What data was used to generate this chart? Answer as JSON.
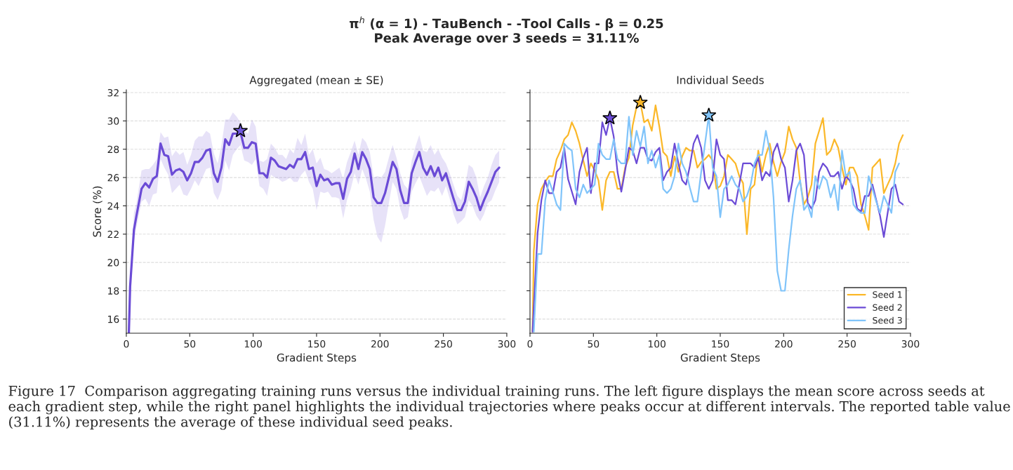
{
  "chart_data": [
    {
      "type": "line",
      "title": "Aggregated (mean ± SE)",
      "xlabel": "Gradient Steps",
      "ylabel": "Score (%)",
      "xlim": [
        0,
        300
      ],
      "ylim": [
        15,
        32.2
      ],
      "xticks": [
        0,
        50,
        100,
        150,
        200,
        250,
        300
      ],
      "yticks": [
        16,
        18,
        20,
        22,
        24,
        26,
        28,
        30,
        32
      ],
      "grid": "y",
      "annotations": [
        "π$^{h}$ (α = 1) - TauBench - -Tool Calls - β = 0.25",
        "Peak Average over 3 seeds = 31.11%",
        "Figure 17  Comparison aggregating training runs versus the individual training runs. The left figure displays the mean score across seeds at each gradient step, while the right panel highlights the individual trajectories where peaks occur at different intervals. The reported table value (31.11%) represents the average of these individual seed peaks."
      ],
      "series": [
        {
          "color": "#6b4bd6",
          "x": [
            2,
            3,
            6,
            8,
            12,
            15,
            18,
            21,
            24,
            27,
            30,
            33,
            36,
            39,
            42,
            45,
            48,
            51,
            54,
            57,
            60,
            63,
            66,
            69,
            72,
            75,
            78,
            81,
            84,
            87,
            90,
            93,
            96,
            99,
            102,
            105,
            108,
            111,
            114,
            117,
            120,
            123,
            126,
            129,
            132,
            135,
            138,
            141,
            144,
            147,
            150,
            153,
            156,
            159,
            162,
            165,
            168,
            171,
            174,
            177,
            180,
            183,
            186,
            189,
            192,
            195,
            198,
            201,
            204,
            207,
            210,
            213,
            216,
            219,
            222,
            225,
            228,
            231,
            234,
            237,
            240,
            243,
            246,
            249,
            252,
            255,
            258,
            261,
            264,
            267,
            270,
            273,
            276,
            279,
            282,
            285,
            288,
            291,
            294
          ],
          "values": [
            15.0,
            18.3,
            22.3,
            23.3,
            25.2,
            25.6,
            25.3,
            25.9,
            26.1,
            28.4,
            27.6,
            27.5,
            26.2,
            26.5,
            26.6,
            26.4,
            25.8,
            26.3,
            27.1,
            27.1,
            27.4,
            27.9,
            28.0,
            26.3,
            25.7,
            26.7,
            28.7,
            28.3,
            29.1,
            29.1,
            29.2,
            28.1,
            28.1,
            28.5,
            28.4,
            26.3,
            26.3,
            26.0,
            27.4,
            27.2,
            26.8,
            26.7,
            26.6,
            26.9,
            26.7,
            27.3,
            27.3,
            27.8,
            26.6,
            26.7,
            25.4,
            26.2,
            25.8,
            25.9,
            25.5,
            25.6,
            25.6,
            24.5,
            25.9,
            26.4,
            27.7,
            26.6,
            27.8,
            27.3,
            26.6,
            24.6,
            24.2,
            24.2,
            24.9,
            26.0,
            27.1,
            26.6,
            25.1,
            24.2,
            24.2,
            26.3,
            27.1,
            27.8,
            26.7,
            26.2,
            26.8,
            26.1,
            26.7,
            25.8,
            26.3,
            25.4,
            24.5,
            23.7,
            23.7,
            24.3,
            25.7,
            25.2,
            24.6,
            23.7,
            24.4,
            25.0,
            25.7,
            26.4,
            26.7
          ],
          "lower": [
            15.0,
            18.0,
            21.5,
            22.5,
            24.3,
            24.5,
            24.0,
            24.8,
            24.9,
            27.3,
            26.7,
            26.2,
            24.9,
            25.2,
            25.5,
            24.8,
            24.7,
            25.2,
            25.8,
            25.4,
            26.0,
            26.6,
            26.7,
            24.9,
            24.4,
            25.1,
            27.2,
            26.5,
            27.6,
            28.0,
            28.3,
            27.2,
            27.1,
            26.9,
            27.3,
            25.4,
            25.2,
            24.7,
            26.2,
            26.0,
            25.9,
            25.7,
            25.8,
            26.0,
            25.7,
            25.7,
            26.2,
            26.5,
            25.7,
            25.2,
            23.7,
            25.0,
            24.9,
            25.0,
            24.6,
            24.6,
            24.5,
            23.1,
            24.4,
            25.2,
            26.3,
            25.5,
            26.6,
            25.9,
            25.0,
            23.0,
            21.8,
            21.4,
            22.6,
            24.2,
            25.7,
            25.2,
            23.8,
            23.0,
            23.2,
            25.0,
            25.6,
            26.1,
            25.4,
            24.7,
            25.1,
            25.0,
            25.3,
            24.7,
            25.4,
            24.5,
            23.4,
            22.7,
            22.9,
            23.2,
            24.4,
            24.0,
            23.3,
            22.9,
            23.4,
            24.2,
            24.4,
            25.1,
            25.7
          ],
          "upper": [
            15.0,
            18.6,
            23.5,
            24.2,
            26.5,
            26.6,
            26.6,
            26.9,
            27.3,
            29.2,
            28.8,
            28.9,
            27.5,
            27.9,
            27.6,
            27.8,
            26.9,
            27.6,
            28.6,
            28.9,
            28.9,
            29.3,
            29.1,
            27.7,
            27.0,
            28.3,
            30.1,
            30.1,
            30.6,
            30.3,
            29.9,
            29.3,
            29.1,
            30.1,
            29.6,
            27.2,
            27.1,
            27.3,
            28.4,
            28.1,
            27.6,
            27.6,
            27.3,
            28.0,
            27.7,
            28.8,
            28.3,
            29.1,
            27.6,
            28.0,
            27.0,
            27.4,
            26.6,
            26.5,
            26.3,
            26.5,
            26.7,
            25.9,
            27.1,
            27.8,
            28.6,
            27.6,
            28.8,
            28.5,
            27.8,
            26.0,
            26.1,
            26.0,
            26.4,
            27.4,
            28.3,
            27.4,
            26.3,
            25.5,
            25.2,
            27.2,
            28.2,
            29.0,
            27.9,
            27.8,
            28.3,
            27.6,
            28.0,
            27.4,
            27.0,
            26.3,
            25.5,
            24.7,
            24.4,
            25.4,
            26.9,
            26.7,
            26.0,
            24.6,
            25.4,
            26.0,
            26.9,
            27.6,
            27.9
          ]
        },
        {
          "type": "scatter",
          "marker": "star",
          "color": "#7058dc",
          "x": [
            90
          ],
          "values": [
            29.3
          ]
        }
      ]
    },
    {
      "type": "line",
      "title": "Individual Seeds",
      "xlabel": "Gradient Steps",
      "xlim": [
        0,
        300
      ],
      "ylim": [
        15,
        32.2
      ],
      "xticks": [
        0,
        50,
        100,
        150,
        200,
        250,
        300
      ],
      "yticks": [
        16,
        18,
        20,
        22,
        24,
        26,
        28,
        30,
        32
      ],
      "grid": "y",
      "tick_labels": "x",
      "legend": "bottom right",
      "series": [
        {
          "name": "Seed 1",
          "color": "#fbb829",
          "x": [
            2,
            3,
            6,
            9,
            12,
            15,
            18,
            21,
            24,
            27,
            30,
            33,
            36,
            39,
            42,
            45,
            48,
            51,
            54,
            57,
            60,
            63,
            66,
            69,
            72,
            75,
            78,
            81,
            84,
            87,
            90,
            93,
            96,
            99,
            102,
            105,
            108,
            111,
            114,
            117,
            120,
            123,
            126,
            129,
            132,
            135,
            138,
            141,
            144,
            147,
            150,
            153,
            156,
            159,
            162,
            165,
            168,
            171,
            174,
            177,
            180,
            183,
            186,
            189,
            192,
            195,
            198,
            201,
            204,
            207,
            210,
            213,
            216,
            219,
            222,
            225,
            228,
            231,
            234,
            237,
            240,
            243,
            246,
            249,
            252,
            255,
            258,
            261,
            264,
            267,
            270,
            273,
            276,
            279,
            282,
            285,
            288,
            291,
            294
          ],
          "values": [
            15.1,
            20.8,
            24.1,
            25.2,
            25.7,
            26.1,
            26.1,
            27.3,
            27.9,
            28.7,
            29.0,
            29.9,
            29.3,
            28.4,
            27.2,
            26.1,
            27.0,
            26.5,
            25.8,
            23.7,
            25.8,
            26.4,
            26.4,
            25.2,
            25.2,
            26.7,
            27.4,
            29.7,
            31.0,
            31.3,
            29.9,
            30.1,
            29.3,
            31.1,
            29.6,
            27.8,
            27.5,
            26.1,
            27.5,
            26.4,
            27.5,
            28.1,
            27.9,
            27.9,
            26.7,
            27.1,
            27.3,
            27.6,
            27.2,
            25.2,
            25.4,
            26.1,
            27.6,
            27.3,
            27.0,
            26.1,
            25.6,
            22.0,
            25.2,
            25.5,
            27.9,
            26.4,
            27.6,
            28.4,
            27.1,
            26.1,
            27.1,
            27.8,
            29.6,
            28.7,
            28.1,
            25.7,
            24.1,
            24.6,
            25.5,
            28.4,
            29.3,
            30.2,
            27.6,
            27.9,
            28.7,
            28.1,
            26.7,
            25.5,
            26.7,
            26.7,
            26.1,
            24.1,
            23.3,
            22.3,
            26.7,
            27.0,
            27.3,
            24.9,
            25.5,
            26.1,
            27.0,
            28.4,
            29.0
          ]
        },
        {
          "name": "Seed 2",
          "color": "#6b4bd6",
          "x": [
            2,
            6,
            9,
            12,
            15,
            18,
            21,
            24,
            27,
            30,
            33,
            36,
            39,
            42,
            45,
            48,
            51,
            54,
            57,
            60,
            63,
            66,
            69,
            72,
            75,
            78,
            81,
            84,
            87,
            90,
            93,
            96,
            99,
            102,
            105,
            108,
            111,
            114,
            117,
            120,
            123,
            126,
            129,
            132,
            135,
            138,
            141,
            144,
            147,
            150,
            153,
            156,
            159,
            162,
            165,
            168,
            171,
            174,
            177,
            180,
            183,
            186,
            189,
            192,
            195,
            198,
            201,
            204,
            207,
            210,
            213,
            216,
            219,
            222,
            225,
            228,
            231,
            234,
            237,
            240,
            243,
            246,
            249,
            252,
            255,
            258,
            261,
            264,
            267,
            270,
            273,
            276,
            279,
            282,
            285,
            288,
            291,
            294
          ],
          "values": [
            15.1,
            22.1,
            24.4,
            25.8,
            24.9,
            24.9,
            26.4,
            26.7,
            28.1,
            25.9,
            25.0,
            24.1,
            26.4,
            27.4,
            28.1,
            24.9,
            27.0,
            27.0,
            29.9,
            29.0,
            30.2,
            28.9,
            26.4,
            25.0,
            26.5,
            28.1,
            27.9,
            27.0,
            28.1,
            28.1,
            27.3,
            27.2,
            27.8,
            28.1,
            25.8,
            26.4,
            26.7,
            28.4,
            27.0,
            25.8,
            25.5,
            26.8,
            28.4,
            29.0,
            28.1,
            25.8,
            25.2,
            25.8,
            28.7,
            27.6,
            27.3,
            24.4,
            24.4,
            24.1,
            25.5,
            27.0,
            27.0,
            27.0,
            26.7,
            27.4,
            25.8,
            26.4,
            26.1,
            27.8,
            28.4,
            27.3,
            26.7,
            24.3,
            25.8,
            27.9,
            28.4,
            27.6,
            24.2,
            23.8,
            24.4,
            26.4,
            27.0,
            26.7,
            26.1,
            26.1,
            26.4,
            25.2,
            26.1,
            25.8,
            25.2,
            23.8,
            23.6,
            24.7,
            24.7,
            25.5,
            24.4,
            23.3,
            21.8,
            23.5,
            25.2,
            25.5,
            24.3,
            24.1
          ]
        },
        {
          "name": "Seed 3",
          "color": "#80c4fa",
          "x": [
            3,
            6,
            9,
            12,
            15,
            18,
            21,
            24,
            27,
            30,
            33,
            36,
            39,
            42,
            45,
            48,
            51,
            54,
            57,
            60,
            63,
            66,
            69,
            72,
            75,
            78,
            81,
            84,
            87,
            90,
            93,
            96,
            99,
            102,
            105,
            108,
            111,
            114,
            117,
            120,
            123,
            126,
            129,
            132,
            135,
            138,
            141,
            144,
            147,
            150,
            153,
            156,
            159,
            162,
            165,
            168,
            171,
            174,
            177,
            180,
            183,
            186,
            189,
            192,
            195,
            198,
            201,
            204,
            207,
            210,
            213,
            216,
            219,
            222,
            225,
            228,
            231,
            234,
            237,
            240,
            243,
            246,
            249,
            252,
            255,
            258,
            261,
            264,
            267,
            270,
            273,
            276,
            279,
            282,
            285,
            288,
            291
          ],
          "values": [
            15.1,
            20.6,
            20.6,
            24.4,
            25.8,
            25.0,
            24.1,
            23.7,
            28.4,
            28.1,
            27.9,
            25.2,
            24.6,
            25.5,
            24.9,
            25.2,
            25.5,
            28.4,
            27.6,
            27.3,
            27.3,
            28.7,
            27.3,
            27.0,
            27.0,
            30.3,
            27.6,
            29.3,
            28.2,
            29.6,
            27.0,
            27.9,
            26.7,
            27.6,
            25.2,
            24.9,
            25.2,
            26.1,
            28.4,
            27.0,
            26.4,
            25.3,
            24.3,
            24.3,
            26.4,
            28.4,
            30.4,
            26.7,
            26.1,
            23.2,
            25.2,
            25.5,
            26.1,
            25.5,
            25.2,
            24.3,
            24.7,
            25.5,
            27.0,
            27.6,
            27.6,
            29.3,
            27.9,
            24.6,
            19.4,
            18.0,
            18.0,
            20.9,
            23.3,
            25.2,
            25.8,
            23.7,
            24.1,
            23.2,
            26.1,
            25.2,
            26.1,
            25.8,
            24.6,
            25.5,
            23.7,
            27.9,
            26.1,
            26.4,
            24.1,
            23.7,
            23.5,
            23.5,
            26.1,
            25.2,
            24.3,
            23.5,
            24.7,
            24.1,
            23.5,
            26.4,
            27.0
          ]
        },
        {
          "type": "scatter",
          "marker": "star",
          "color": "#fbb829",
          "x": [
            87
          ],
          "values": [
            31.3
          ]
        },
        {
          "type": "scatter",
          "marker": "star",
          "color": "#6b4bd6",
          "x": [
            63
          ],
          "values": [
            30.2
          ]
        },
        {
          "type": "scatter",
          "marker": "star",
          "color": "#80c4fa",
          "x": [
            141
          ],
          "values": [
            30.4
          ]
        }
      ]
    }
  ]
}
